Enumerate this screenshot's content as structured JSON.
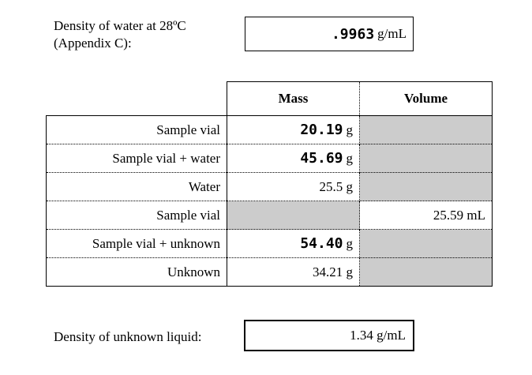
{
  "water_density": {
    "label_line1": "Density of water at 28ºC",
    "label_line2": "(Appendix C):",
    "value": ".9963",
    "unit": "g/mL"
  },
  "table": {
    "headers": {
      "mass": "Mass",
      "volume": "Volume"
    },
    "rows": [
      {
        "label": "Sample vial",
        "mass_value": "20.19",
        "mass_unit": "g",
        "volume": ""
      },
      {
        "label": "Sample vial + water",
        "mass_value": "45.69",
        "mass_unit": "g",
        "volume": ""
      },
      {
        "label": "Water",
        "mass_text": "25.5 g",
        "volume": ""
      },
      {
        "label": "Sample vial",
        "mass_text": "",
        "volume": "25.59 mL"
      },
      {
        "label": "Sample vial + unknown",
        "mass_value": "54.40",
        "mass_unit": "g",
        "volume": ""
      },
      {
        "label": "Unknown",
        "mass_text": "34.21 g",
        "volume": ""
      }
    ]
  },
  "unknown_density": {
    "label": "Density of unknown liquid:",
    "value": "1.34 g/mL"
  },
  "colors": {
    "shaded_cell": "#cccccc",
    "border": "#000000"
  }
}
